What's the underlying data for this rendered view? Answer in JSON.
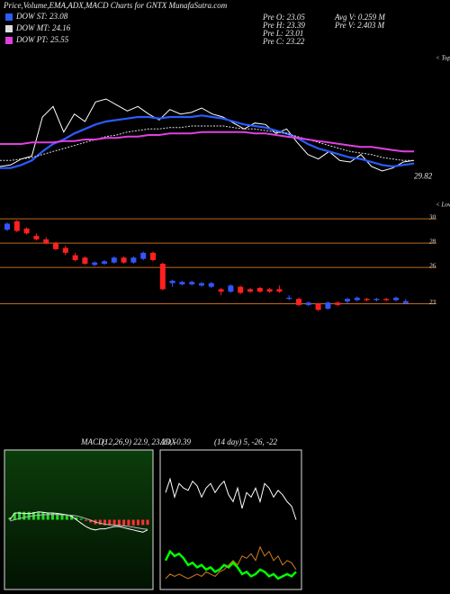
{
  "header": {
    "title": "Price,Volume,EMA,ADX,MACD Charts for GNTX  MunafaSutra.com",
    "stats": [
      "Pre  O: 23.05",
      "Pre  H: 23.39",
      "Pre  L: 23.01",
      "Pre  C: 23.22",
      "Avg V: 0.259 M",
      "Pre  V: 2.403 M"
    ]
  },
  "chart_data": [
    {
      "type": "line",
      "ylim": [
        29,
        38
      ],
      "price_label": 29.82,
      "annotations": [
        "< Tops",
        "< Lows"
      ],
      "series": [
        {
          "color": "#ffffff",
          "values": [
            30.5,
            30.6,
            31.0,
            31.2,
            33.8,
            34.5,
            32.8,
            34.0,
            33.5,
            34.8,
            35.0,
            34.6,
            34.2,
            34.5,
            34.0,
            33.6,
            34.3,
            34.0,
            34.1,
            34.4,
            34.0,
            33.8,
            33.4,
            33.0,
            33.4,
            33.3,
            32.7,
            33.0,
            32.1,
            31.3,
            31.0,
            31.5,
            30.9,
            30.8,
            31.3,
            30.5,
            30.2,
            30.4,
            30.8,
            30.9
          ]
        },
        {
          "name": "DOW ST: 23.08",
          "color": "#2a5cff",
          "values": [
            30.4,
            30.4,
            30.6,
            30.9,
            31.5,
            32.0,
            32.3,
            32.7,
            33.0,
            33.3,
            33.5,
            33.6,
            33.7,
            33.8,
            33.8,
            33.7,
            33.8,
            33.8,
            33.8,
            33.9,
            33.8,
            33.7,
            33.5,
            33.3,
            33.2,
            33.1,
            32.9,
            32.7,
            32.4,
            32.0,
            31.7,
            31.5,
            31.3,
            31.1,
            31.0,
            30.8,
            30.6,
            30.5,
            30.6,
            30.7
          ]
        },
        {
          "name": "DOW MT: 24.16",
          "color": "#dddddd",
          "values": [
            30.9,
            30.9,
            31.0,
            31.1,
            31.3,
            31.5,
            31.7,
            31.9,
            32.1,
            32.3,
            32.5,
            32.6,
            32.8,
            32.9,
            33.0,
            33.0,
            33.1,
            33.1,
            33.2,
            33.2,
            33.2,
            33.2,
            33.1,
            33.0,
            33.0,
            32.9,
            32.8,
            32.7,
            32.5,
            32.3,
            32.1,
            31.9,
            31.7,
            31.5,
            31.4,
            31.3,
            31.1,
            31.0,
            30.9,
            30.9
          ]
        },
        {
          "name": "DOW PT: 25.55",
          "color": "#e040e0",
          "values": [
            32.0,
            32.0,
            32.0,
            32.1,
            32.1,
            32.1,
            32.2,
            32.2,
            32.3,
            32.3,
            32.4,
            32.4,
            32.5,
            32.5,
            32.6,
            32.6,
            32.7,
            32.7,
            32.7,
            32.8,
            32.8,
            32.8,
            32.8,
            32.8,
            32.7,
            32.7,
            32.6,
            32.5,
            32.4,
            32.3,
            32.2,
            32.1,
            32.0,
            31.9,
            31.8,
            31.8,
            31.7,
            31.6,
            31.5,
            31.5
          ]
        }
      ]
    },
    {
      "type": "candlestick",
      "ylim": [
        11.7,
        30.6
      ],
      "yticks": [
        30,
        28,
        26,
        23
      ],
      "up_color": "#3355ff",
      "down_color": "#ff2020",
      "grid_color": "#c06a20",
      "open": [
        29.1,
        29.8,
        29.2,
        28.6,
        28.3,
        28.0,
        27.6,
        27.0,
        26.8,
        26.2,
        26.3,
        26.4,
        26.8,
        26.4,
        26.7,
        27.2,
        26.3,
        24.7,
        24.6,
        24.6,
        24.5,
        24.4,
        24.2,
        24.0,
        24.4,
        24.2,
        24.3,
        24.2,
        24.2,
        23.4,
        23.4,
        22.9,
        23.0,
        22.6,
        23.1,
        23.2,
        23.3,
        23.4,
        23.3,
        23.4,
        23.3,
        23.05
      ],
      "high": [
        29.7,
        29.9,
        29.3,
        28.8,
        28.5,
        28.1,
        27.8,
        27.2,
        26.9,
        26.5,
        26.6,
        26.9,
        26.9,
        26.9,
        27.3,
        27.3,
        26.4,
        25.0,
        24.9,
        24.9,
        24.8,
        24.8,
        24.3,
        24.6,
        24.5,
        24.3,
        24.4,
        24.3,
        24.5,
        23.7,
        23.5,
        23.2,
        23.1,
        23.2,
        23.2,
        23.5,
        23.6,
        23.5,
        23.5,
        23.5,
        23.6,
        23.39
      ],
      "low": [
        29.0,
        28.9,
        28.7,
        28.2,
        27.9,
        27.4,
        27.0,
        26.5,
        26.2,
        26.1,
        26.2,
        26.3,
        26.3,
        26.3,
        26.6,
        26.5,
        24.1,
        24.4,
        24.5,
        24.5,
        24.4,
        24.3,
        23.7,
        23.9,
        23.8,
        23.9,
        23.9,
        23.9,
        23.9,
        23.3,
        22.8,
        22.8,
        22.4,
        22.5,
        22.8,
        23.0,
        23.2,
        23.2,
        23.2,
        23.2,
        23.2,
        23.01
      ],
      "close": [
        29.6,
        29.0,
        28.8,
        28.3,
        28.0,
        27.5,
        27.2,
        26.6,
        26.3,
        26.4,
        26.5,
        26.8,
        26.4,
        26.8,
        27.2,
        26.6,
        24.2,
        24.9,
        24.8,
        24.8,
        24.7,
        24.7,
        24.0,
        24.5,
        23.9,
        24.0,
        24.0,
        24.0,
        24.0,
        23.5,
        22.9,
        23.1,
        22.5,
        23.1,
        22.9,
        23.4,
        23.5,
        23.3,
        23.4,
        23.3,
        23.5,
        23.22
      ]
    },
    {
      "type": "macd",
      "title": "MACD:",
      "params": "(12,26,9) 22.9, 23.29, -0.39",
      "ylim": [
        -3,
        3
      ],
      "histogram": {
        "pos_color": "#22dd22",
        "neg_color": "#ff3333",
        "values": [
          0.1,
          0.3,
          0.35,
          0.35,
          0.35,
          0.34,
          0.33,
          0.32,
          0.3,
          0.28,
          0.27,
          0.25,
          0.22,
          0.18,
          0.1,
          0.05,
          -0.05,
          -0.12,
          -0.2,
          -0.22,
          -0.24,
          -0.25,
          -0.25,
          -0.26,
          -0.26,
          -0.25,
          -0.25,
          -0.24,
          -0.23,
          -0.22
        ]
      },
      "series": [
        {
          "color": "#ffffff",
          "values": [
            0,
            0.3,
            0.3,
            0.28,
            0.27,
            0.3,
            0.35,
            0.33,
            0.3,
            0.3,
            0.28,
            0.25,
            0.22,
            0.15,
            0.0,
            -0.15,
            -0.3,
            -0.4,
            -0.45,
            -0.4,
            -0.4,
            -0.35,
            -0.3,
            -0.3,
            -0.35,
            -0.4,
            -0.45,
            -0.5,
            -0.55,
            -0.45
          ]
        },
        {
          "color": "#bbbbbb",
          "values": [
            -0.05,
            0.0,
            0.05,
            0.1,
            0.15,
            0.18,
            0.2,
            0.22,
            0.23,
            0.23,
            0.23,
            0.22,
            0.21,
            0.2,
            0.17,
            0.12,
            0.05,
            -0.02,
            -0.1,
            -0.15,
            -0.2,
            -0.22,
            -0.24,
            -0.25,
            -0.27,
            -0.3,
            -0.33,
            -0.36,
            -0.4,
            -0.42
          ]
        }
      ]
    },
    {
      "type": "adx",
      "title": "ADX",
      "params": "(14 day) 5, -26, -22",
      "ylim": [
        0,
        60
      ],
      "series": [
        {
          "color": "#ffffff",
          "width": 1,
          "values": [
            42,
            48,
            40,
            46,
            44,
            43,
            47,
            45,
            40,
            44,
            46,
            42,
            45,
            47,
            41,
            38,
            44,
            35,
            42,
            40,
            44,
            38,
            46,
            44,
            40,
            43,
            41,
            38,
            36,
            30
          ]
        },
        {
          "color": "#00ff00",
          "width": 2.5,
          "values": [
            12,
            16,
            14,
            15,
            13,
            10,
            11,
            9,
            10,
            8,
            9,
            7,
            8,
            10,
            9,
            11,
            9,
            6,
            7,
            5,
            6,
            8,
            7,
            5,
            6,
            4,
            5,
            6,
            5,
            7
          ]
        },
        {
          "color": "#d08020",
          "width": 1,
          "values": [
            4,
            6,
            5,
            6,
            5,
            4,
            5,
            6,
            5,
            7,
            6,
            5,
            7,
            8,
            10,
            12,
            10,
            14,
            13,
            15,
            12,
            18,
            14,
            16,
            12,
            14,
            10,
            12,
            11,
            8
          ]
        }
      ]
    }
  ]
}
